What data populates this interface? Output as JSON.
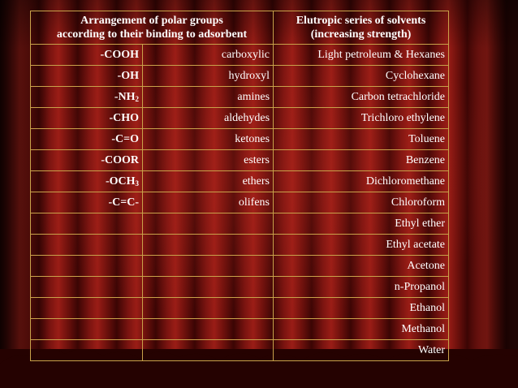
{
  "table": {
    "headers": [
      [
        "Arrangement of polar groups",
        "according to their binding to adsorbent"
      ],
      [
        "Elutropic series of solvents",
        "(increasing strength)"
      ]
    ],
    "rows": [
      {
        "group": "-COOH",
        "group_sub": "",
        "group_suffix": "",
        "name": "carboxylic",
        "solvent": "Light petroleum & Hexanes"
      },
      {
        "group": "-OH",
        "group_sub": "",
        "group_suffix": "",
        "name": "hydroxyl",
        "solvent": "Cyclohexane"
      },
      {
        "group": "-NH",
        "group_sub": "2",
        "group_suffix": "",
        "name": "amines",
        "solvent": "Carbon tetrachloride"
      },
      {
        "group": "-CHO",
        "group_sub": "",
        "group_suffix": "",
        "name": "aldehydes",
        "solvent": "Trichloro ethylene"
      },
      {
        "group": "-C=O",
        "group_sub": "",
        "group_suffix": "",
        "name": "ketones",
        "solvent": "Toluene"
      },
      {
        "group": "-COOR",
        "group_sub": "",
        "group_suffix": "",
        "name": "esters",
        "solvent": "Benzene"
      },
      {
        "group": "-OCH",
        "group_sub": "3",
        "group_suffix": "",
        "name": "ethers",
        "solvent": "Dichloromethane"
      },
      {
        "group": "-C=C-",
        "group_sub": "",
        "group_suffix": "",
        "name": "olifens",
        "solvent": "Chloroform"
      },
      {
        "group": "",
        "group_sub": "",
        "group_suffix": "",
        "name": "",
        "solvent": "Ethyl ether"
      },
      {
        "group": "",
        "group_sub": "",
        "group_suffix": "",
        "name": "",
        "solvent": "Ethyl acetate"
      },
      {
        "group": "",
        "group_sub": "",
        "group_suffix": "",
        "name": "",
        "solvent": "Acetone"
      },
      {
        "group": "",
        "group_sub": "",
        "group_suffix": "",
        "name": "",
        "solvent": "n-Propanol"
      },
      {
        "group": "",
        "group_sub": "",
        "group_suffix": "",
        "name": "",
        "solvent": "Ethanol"
      },
      {
        "group": "",
        "group_sub": "",
        "group_suffix": "",
        "name": "",
        "solvent": "Methanol"
      },
      {
        "group": "",
        "group_sub": "",
        "group_suffix": "",
        "name": "",
        "solvent": "Water"
      }
    ]
  },
  "colors": {
    "text": "#ffffff",
    "grid_line": "#c8a24a",
    "curtain": "#8a1812",
    "floor": "#250201"
  }
}
